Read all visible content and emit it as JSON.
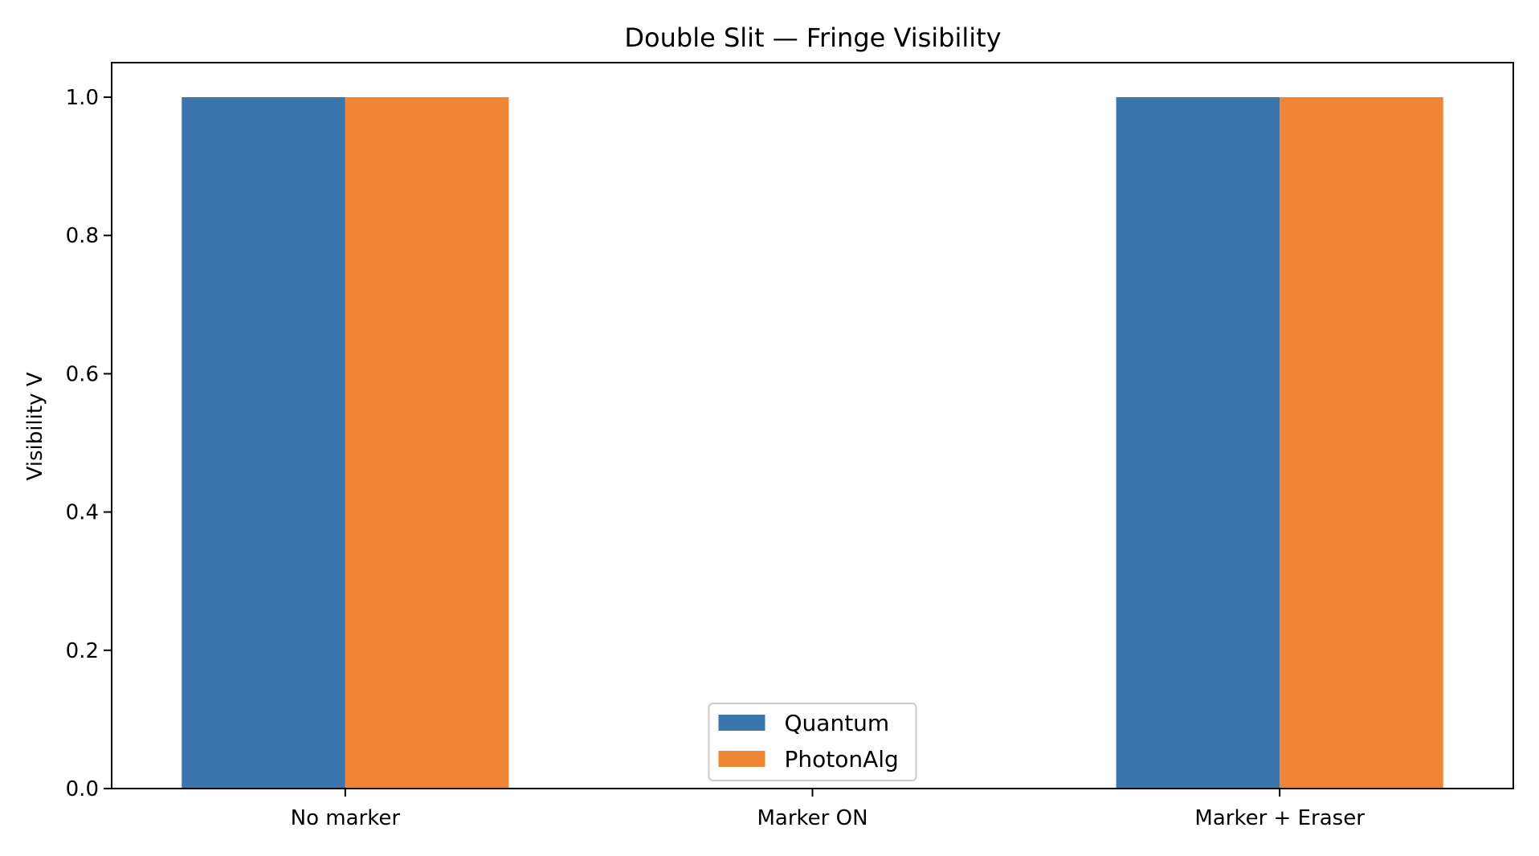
{
  "chart_data": {
    "type": "bar",
    "title": "Double Slit — Fringe Visibility",
    "xlabel": "",
    "ylabel": "Visibility V",
    "categories": [
      "No marker",
      "Marker ON",
      "Marker + Eraser"
    ],
    "series": [
      {
        "name": "Quantum",
        "values": [
          1.0,
          0.0,
          1.0
        ],
        "color": "#3a75ae"
      },
      {
        "name": "PhotonAlg",
        "values": [
          1.0,
          0.0,
          1.0
        ],
        "color": "#ef8636"
      }
    ],
    "ylim": [
      0,
      1.05
    ],
    "yticks": [
      "0.0",
      "0.2",
      "0.4",
      "0.6",
      "0.8",
      "1.0"
    ],
    "grid": false,
    "legend": "lower-center"
  }
}
